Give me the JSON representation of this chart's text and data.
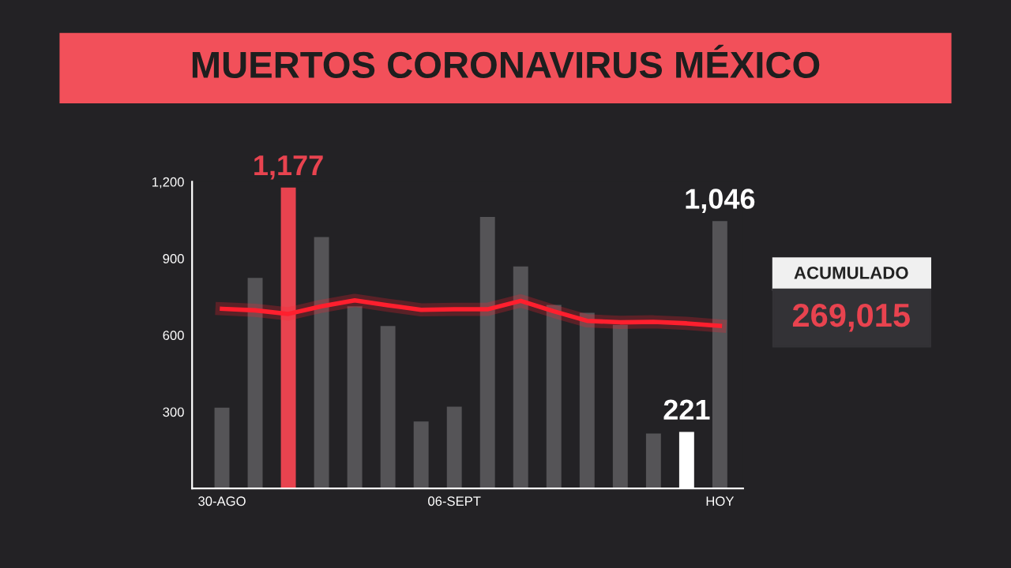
{
  "chart_data": {
    "type": "bar",
    "title": "MUERTOS CORONAVIRUS MÉXICO",
    "categories": [
      "30-AGO",
      null,
      null,
      null,
      null,
      null,
      null,
      "06-SEPT",
      null,
      null,
      null,
      null,
      null,
      null,
      null,
      "HOY"
    ],
    "series": [
      {
        "colors": [
          "#555457",
          "#555457",
          "#e8434f",
          "#555457",
          "#555457",
          "#555457",
          "#555457",
          "#555457",
          "#555457",
          "#555457",
          "#555457",
          "#555457",
          "#555457",
          "#555457",
          "#ffffff",
          "#555457"
        ],
        "values": [
          316,
          824,
          1177,
          984,
          713,
          636,
          262,
          320,
          1062,
          869,
          718,
          687,
          640,
          215,
          221,
          1046
        ],
        "value_labels": [
          null,
          null,
          "1,177",
          null,
          null,
          null,
          null,
          null,
          null,
          null,
          null,
          null,
          null,
          null,
          "221",
          "1,046"
        ]
      },
      {
        "type": "line",
        "color": "#ff1f2e",
        "values": [
          703,
          697,
          683,
          713,
          736,
          717,
          699,
          701,
          701,
          734,
          693,
          656,
          650,
          652,
          646,
          636
        ]
      }
    ],
    "ylim": [
      0,
      1200
    ],
    "yticks": [
      300,
      600,
      900,
      {
        "value": 1200,
        "label": "1,200"
      }
    ],
    "annotations": [
      "ACUMULADO",
      "269,015"
    ],
    "grid": false,
    "legend": false
  }
}
